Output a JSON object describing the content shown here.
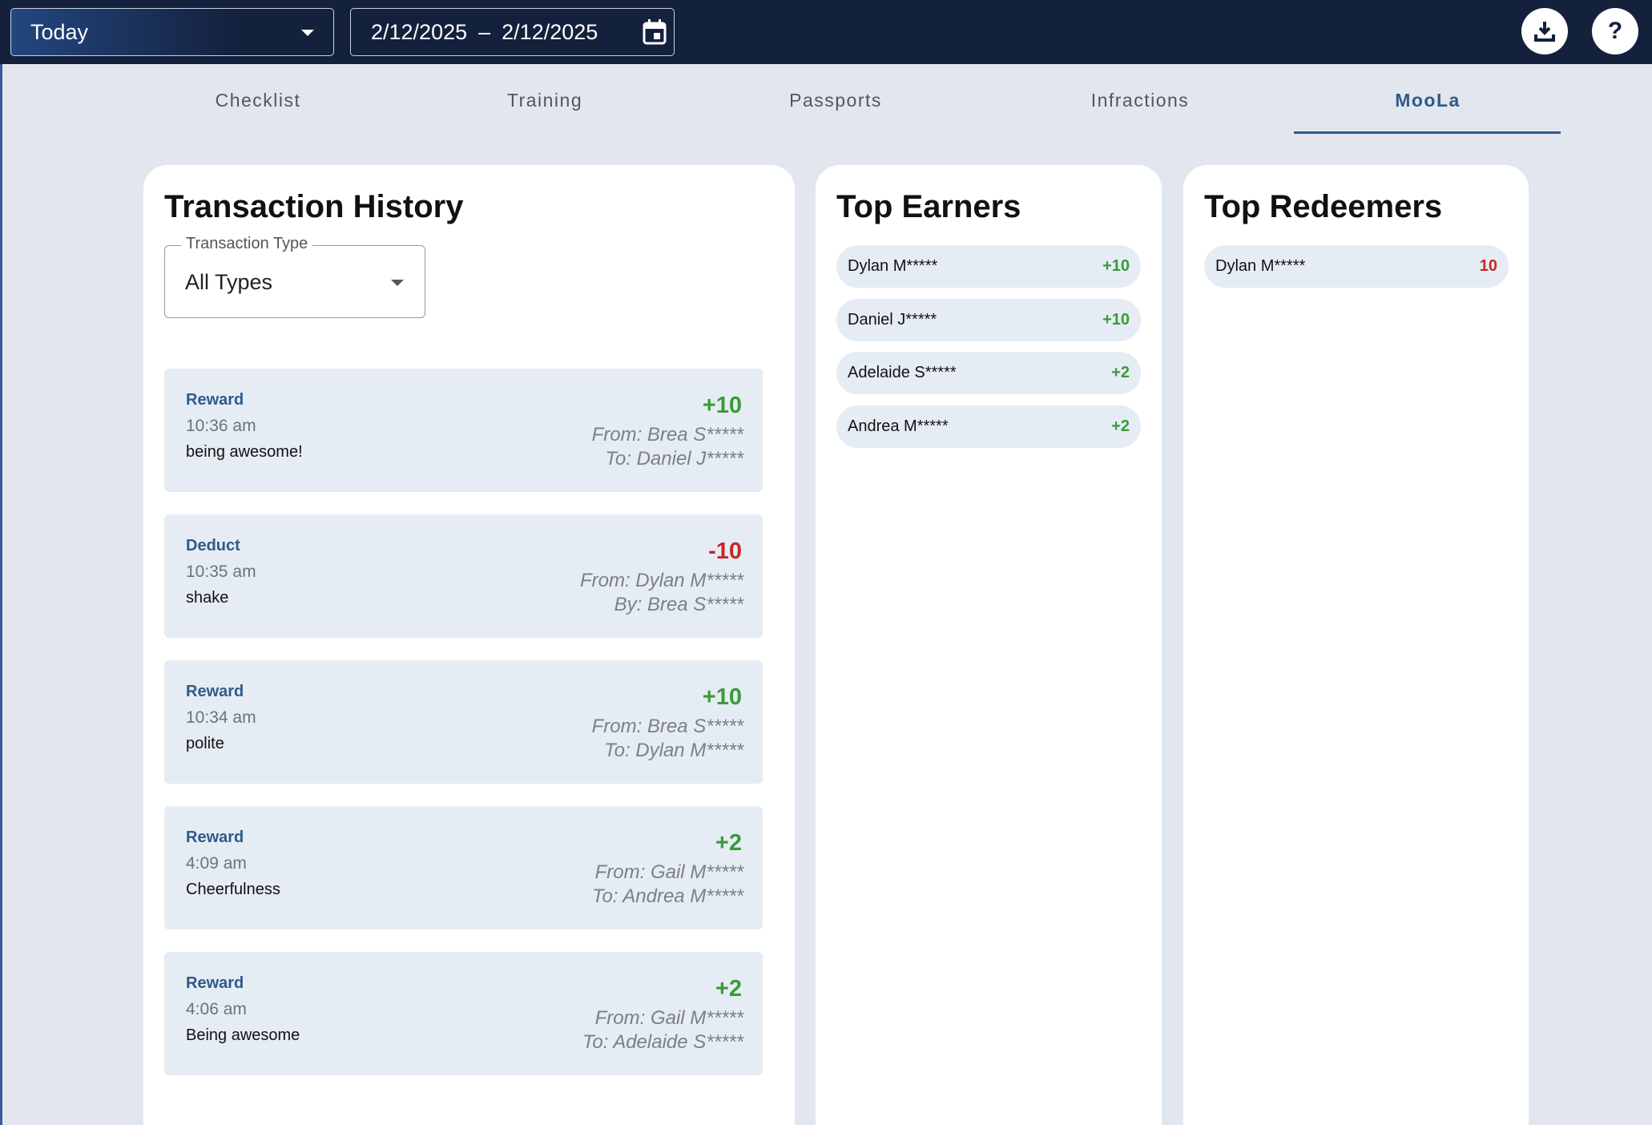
{
  "header": {
    "range_select": "Today",
    "date_start": "2/12/2025",
    "date_separator": "–",
    "date_end": "2/12/2025",
    "help_label": "?"
  },
  "tabs": {
    "items": [
      "Checklist",
      "Training",
      "Passports",
      "Infractions",
      "MooLa"
    ],
    "active_index": 4
  },
  "transaction_history": {
    "title": "Transaction History",
    "filter_label": "Transaction Type",
    "filter_value": "All Types",
    "transactions": [
      {
        "type": "Reward",
        "time": "10:36 am",
        "note": "being awesome!",
        "amount": "+10",
        "from": "From: Brea S*****",
        "to": "To: Daniel J*****"
      },
      {
        "type": "Deduct",
        "time": "10:35 am",
        "note": "shake",
        "amount": "-10",
        "from": "From: Dylan M*****",
        "to": "By: Brea S*****"
      },
      {
        "type": "Reward",
        "time": "10:34 am",
        "note": "polite",
        "amount": "+10",
        "from": "From: Brea S*****",
        "to": "To: Dylan M*****"
      },
      {
        "type": "Reward",
        "time": "4:09 am",
        "note": "Cheerfulness",
        "amount": "+2",
        "from": "From: Gail M*****",
        "to": "To: Andrea M*****"
      },
      {
        "type": "Reward",
        "time": "4:06 am",
        "note": "Being awesome",
        "amount": "+2",
        "from": "From: Gail M*****",
        "to": "To: Adelaide S*****"
      }
    ]
  },
  "top_earners": {
    "title": "Top Earners",
    "items": [
      {
        "name": "Dylan M*****",
        "points": "+10"
      },
      {
        "name": "Daniel J*****",
        "points": "+10"
      },
      {
        "name": "Adelaide S*****",
        "points": "+2"
      },
      {
        "name": "Andrea M*****",
        "points": "+2"
      }
    ]
  },
  "top_redeemers": {
    "title": "Top Redeemers",
    "items": [
      {
        "name": "Dylan M*****",
        "points": "10"
      }
    ]
  }
}
